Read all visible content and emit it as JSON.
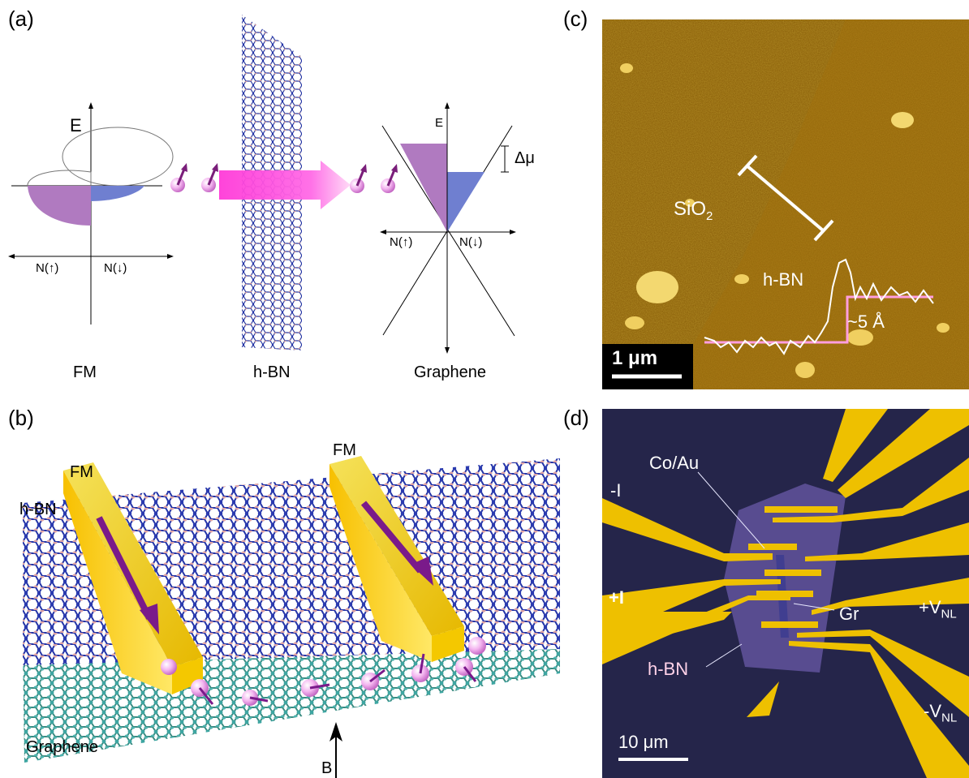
{
  "panels": {
    "a": {
      "label": "(a)",
      "fm": {
        "axis_e": "E",
        "n_up": "N(↑)",
        "n_down": "N(↓)",
        "caption": "FM"
      },
      "hbn": {
        "caption": "h-BN"
      },
      "graphene": {
        "axis_e": "E",
        "delta_mu": "Δμ",
        "n_up": "N(↑)",
        "n_down": "N(↓)",
        "caption": "Graphene"
      }
    },
    "b": {
      "label": "(b)",
      "fm_left": "FM",
      "fm_right": "FM",
      "hbn": "h-BN",
      "graphene": "Graphene",
      "field": "B"
    },
    "c": {
      "label": "(c)",
      "sio2": "SiO",
      "sio2_sub": "2",
      "hbn": "h-BN",
      "step": "~5 Å",
      "scale": "1 μm"
    },
    "d": {
      "label": "(d)",
      "coau": "Co/Au",
      "minus_i": "-I",
      "plus_i": "+I",
      "plus_vnl": "+V",
      "minus_vnl": "-V",
      "vnl_sub": "NL",
      "gr": "Gr",
      "hbn": "h-BN",
      "scale": "10 μm"
    }
  },
  "colors": {
    "purple": "#b07ac0",
    "blue": "#6f7fd0",
    "magenta": "#ff2bd6",
    "gold": "#e8c200",
    "afm_bg": "#8a5a08",
    "device_bg": "#25254a"
  }
}
